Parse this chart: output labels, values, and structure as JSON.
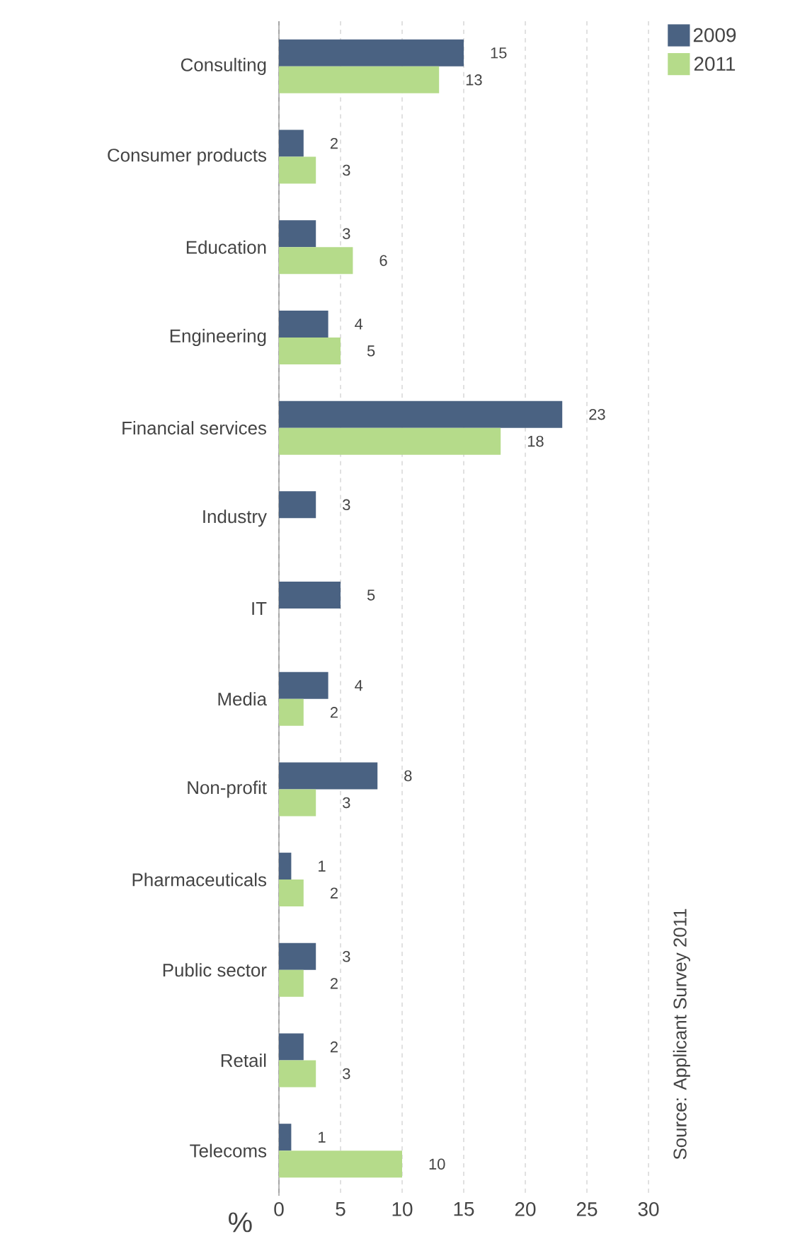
{
  "chart_data": {
    "type": "bar",
    "orientation": "horizontal",
    "xlabel": "%",
    "categories": [
      "Consulting",
      "Consumer products",
      "Education",
      "Engineering",
      "Financial services",
      "Industry",
      "IT",
      "Media",
      "Non-profit",
      "Pharmaceuticals",
      "Public sector",
      "Retail",
      "Telecoms"
    ],
    "series": [
      {
        "name": "2009",
        "color": "#4a6282",
        "values": [
          15,
          2,
          3,
          4,
          23,
          3,
          5,
          4,
          8,
          1,
          3,
          2,
          1
        ]
      },
      {
        "name": "2011",
        "color": "#b5db8a",
        "values": [
          13,
          3,
          6,
          5,
          18,
          null,
          null,
          2,
          3,
          2,
          2,
          3,
          10
        ]
      }
    ],
    "xlim": [
      0,
      30
    ],
    "xticks": [
      0,
      5,
      10,
      15,
      20,
      25,
      30
    ],
    "grid": "x",
    "legend": "top right",
    "data_labels": true,
    "annotations": [
      "Source: Applicant Survey 2011"
    ]
  }
}
